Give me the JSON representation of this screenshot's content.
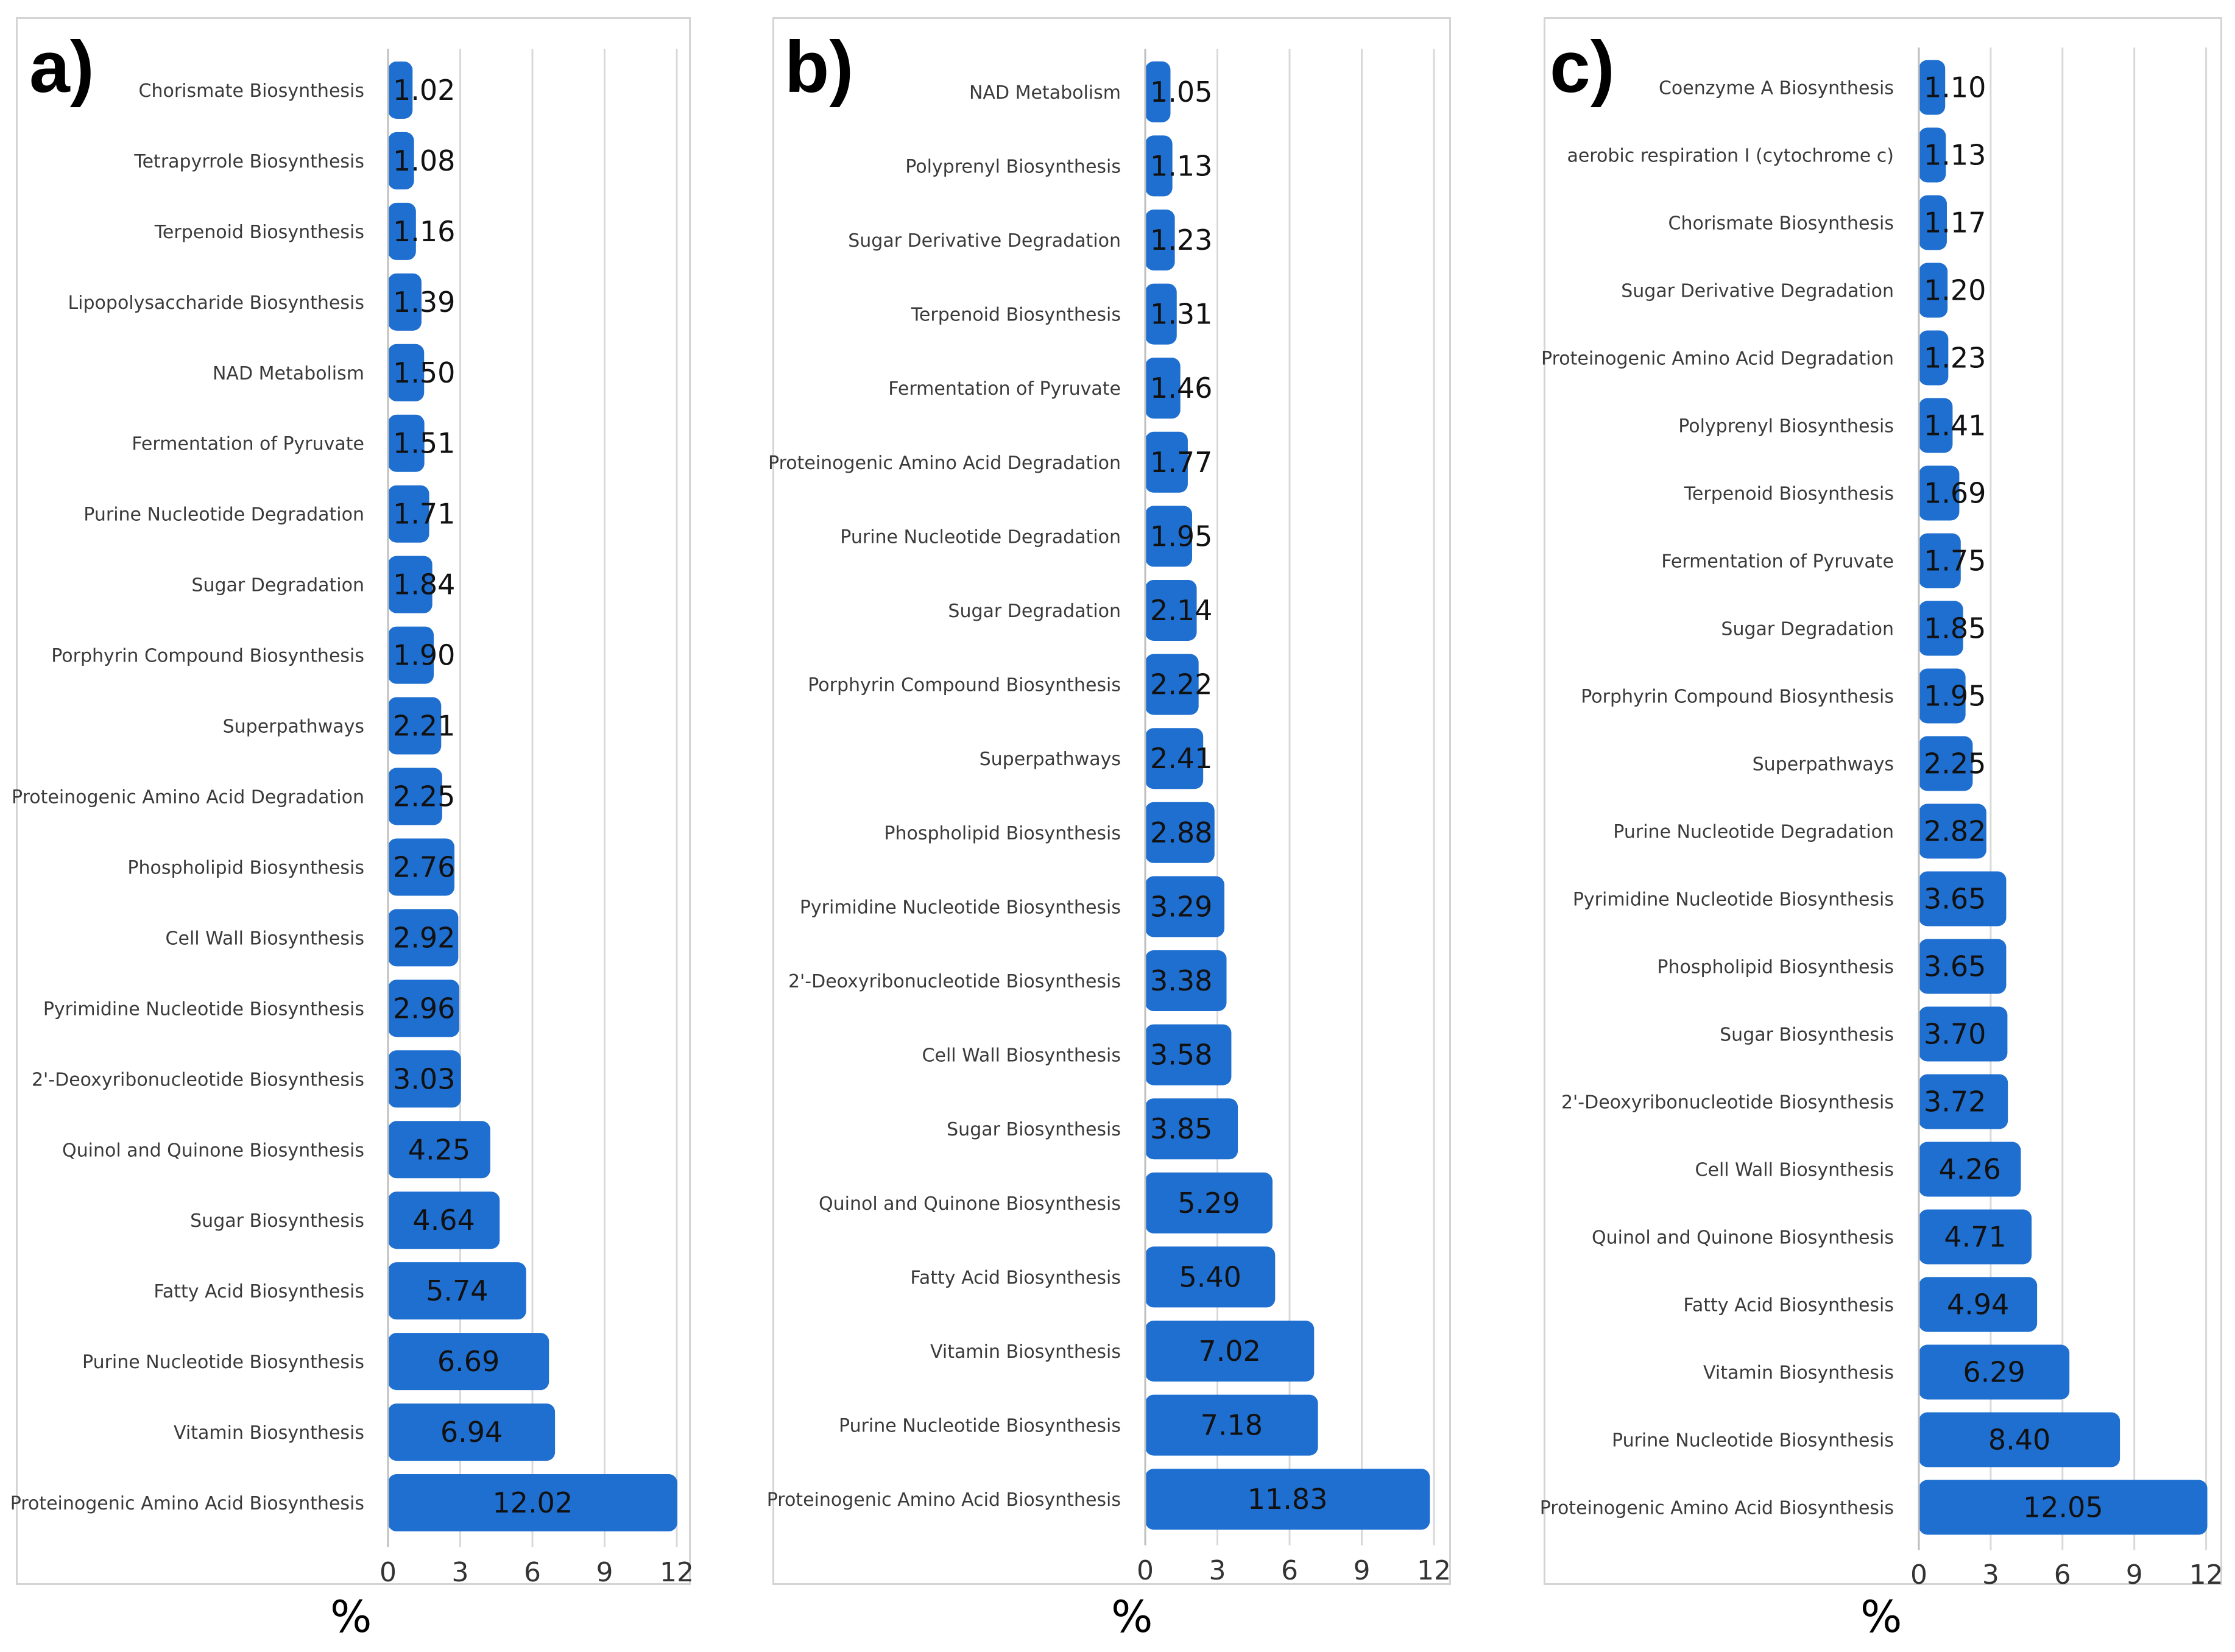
{
  "chart_data": [
    {
      "type": "bar",
      "orientation": "horizontal",
      "panel_label": "a)",
      "xlabel": "%",
      "xlim": [
        0,
        12
      ],
      "xticks": [
        "0",
        "3",
        "6",
        "9",
        "12"
      ],
      "grid": true,
      "bar_color": "#1f6fd1",
      "categories": [
        "Chorismate Biosynthesis",
        "Tetrapyrrole Biosynthesis",
        "Terpenoid Biosynthesis",
        "Lipopolysaccharide Biosynthesis",
        "NAD Metabolism",
        "Fermentation of Pyruvate",
        "Purine Nucleotide Degradation",
        "Sugar Degradation",
        "Porphyrin Compound Biosynthesis",
        "Superpathways",
        "Proteinogenic Amino Acid Degradation",
        "Phospholipid Biosynthesis",
        "Cell Wall Biosynthesis",
        "Pyrimidine Nucleotide Biosynthesis",
        "2'-Deoxyribonucleotide Biosynthesis",
        "Quinol and Quinone Biosynthesis",
        "Sugar Biosynthesis",
        "Fatty Acid Biosynthesis",
        "Purine Nucleotide Biosynthesis",
        "Vitamin Biosynthesis",
        "Proteinogenic Amino Acid Biosynthesis"
      ],
      "values": [
        1.02,
        1.08,
        1.16,
        1.39,
        1.5,
        1.51,
        1.71,
        1.84,
        1.9,
        2.21,
        2.25,
        2.76,
        2.92,
        2.96,
        3.03,
        4.25,
        4.64,
        5.74,
        6.69,
        6.94,
        12.02
      ],
      "labels": [
        "1.02",
        "1.08",
        "1.16",
        "1.39",
        "1.50",
        "1.51",
        "1.71",
        "1.84",
        "1.90",
        "2.21",
        "2.25",
        "2.76",
        "2.92",
        "2.96",
        "3.03",
        "4.25",
        "4.64",
        "5.74",
        "6.69",
        "6.94",
        "12.02"
      ]
    },
    {
      "type": "bar",
      "orientation": "horizontal",
      "panel_label": "b)",
      "xlabel": "%",
      "xlim": [
        0,
        12
      ],
      "xticks": [
        "0",
        "3",
        "6",
        "9",
        "12"
      ],
      "grid": true,
      "bar_color": "#1f6fd1",
      "categories": [
        "NAD Metabolism",
        "Polyprenyl Biosynthesis",
        "Sugar Derivative Degradation",
        "Terpenoid Biosynthesis",
        "Fermentation of Pyruvate",
        "Proteinogenic Amino Acid Degradation",
        "Purine Nucleotide Degradation",
        "Sugar Degradation",
        "Porphyrin Compound Biosynthesis",
        "Superpathways",
        "Phospholipid Biosynthesis",
        "Pyrimidine Nucleotide Biosynthesis",
        "2'-Deoxyribonucleotide Biosynthesis",
        "Cell Wall Biosynthesis",
        "Sugar Biosynthesis",
        "Quinol and Quinone Biosynthesis",
        "Fatty Acid Biosynthesis",
        "Vitamin Biosynthesis",
        "Purine Nucleotide Biosynthesis",
        "Proteinogenic Amino Acid Biosynthesis"
      ],
      "values": [
        1.05,
        1.13,
        1.23,
        1.31,
        1.46,
        1.77,
        1.95,
        2.14,
        2.22,
        2.41,
        2.88,
        3.29,
        3.38,
        3.58,
        3.85,
        5.29,
        5.4,
        7.02,
        7.18,
        11.83
      ],
      "labels": [
        "1.05",
        "1.13",
        "1.23",
        "1.31",
        "1.46",
        "1.77",
        "1.95",
        "2.14",
        "2.22",
        "2.41",
        "2.88",
        "3.29",
        "3.38",
        "3.58",
        "3.85",
        "5.29",
        "5.40",
        "7.02",
        "7.18",
        "11.83"
      ]
    },
    {
      "type": "bar",
      "orientation": "horizontal",
      "panel_label": "c)",
      "xlabel": "%",
      "xlim": [
        0,
        12
      ],
      "xticks": [
        "0",
        "3",
        "6",
        "9",
        "12"
      ],
      "grid": true,
      "bar_color": "#1f6fd1",
      "categories": [
        "Coenzyme A Biosynthesis",
        "aerobic respiration I (cytochrome c)",
        "Chorismate Biosynthesis",
        "Sugar Derivative Degradation",
        "Proteinogenic Amino Acid Degradation",
        "Polyprenyl Biosynthesis",
        "Terpenoid Biosynthesis",
        "Fermentation of Pyruvate",
        "Sugar Degradation",
        "Porphyrin Compound Biosynthesis",
        "Superpathways",
        "Purine Nucleotide Degradation",
        "Pyrimidine Nucleotide Biosynthesis",
        "Phospholipid Biosynthesis",
        "Sugar Biosynthesis",
        "2'-Deoxyribonucleotide Biosynthesis",
        "Cell Wall Biosynthesis",
        "Quinol and Quinone Biosynthesis",
        "Fatty Acid Biosynthesis",
        "Vitamin Biosynthesis",
        "Purine Nucleotide Biosynthesis",
        "Proteinogenic Amino Acid Biosynthesis"
      ],
      "values": [
        1.1,
        1.13,
        1.17,
        1.2,
        1.23,
        1.41,
        1.69,
        1.75,
        1.85,
        1.95,
        2.25,
        2.82,
        3.65,
        3.65,
        3.7,
        3.72,
        4.26,
        4.71,
        4.94,
        6.29,
        8.4,
        12.05
      ],
      "labels": [
        "1.10",
        "1.13",
        "1.17",
        "1.20",
        "1.23",
        "1.41",
        "1.69",
        "1.75",
        "1.85",
        "1.95",
        "2.25",
        "2.82",
        "3.65",
        "3.65",
        "3.70",
        "3.72",
        "4.26",
        "4.71",
        "4.94",
        "6.29",
        "8.40",
        "12.05"
      ]
    }
  ]
}
